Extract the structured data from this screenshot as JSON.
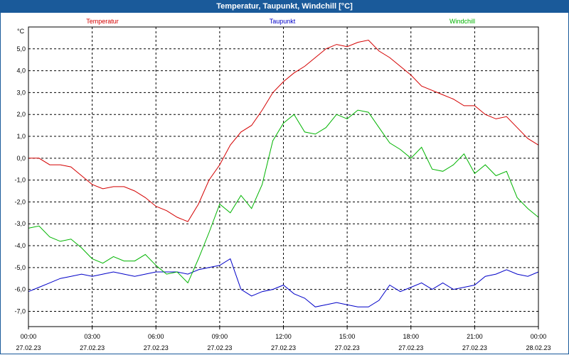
{
  "window": {
    "title": "Temperatur, Taupunkt, Windchill [°C]"
  },
  "chart_data": {
    "type": "line",
    "title": "Temperatur, Taupunkt, Windchill [°C]",
    "ylabel": "°C",
    "xlabel": "",
    "ylim": [
      -7.5,
      6.0
    ],
    "grid": true,
    "legend_placement": "top",
    "x_ticks": [
      {
        "time": "00:00",
        "date": "27.02.23"
      },
      {
        "time": "03:00",
        "date": "27.02.23"
      },
      {
        "time": "06:00",
        "date": "27.02.23"
      },
      {
        "time": "09:00",
        "date": "27.02.23"
      },
      {
        "time": "12:00",
        "date": "27.02.23"
      },
      {
        "time": "15:00",
        "date": "27.02.23"
      },
      {
        "time": "18:00",
        "date": "27.02.23"
      },
      {
        "time": "21:00",
        "date": "27.02.23"
      },
      {
        "time": "00:00",
        "date": "28.02.23"
      }
    ],
    "y_ticks": [
      "5,0",
      "4,0",
      "3,0",
      "2,0",
      "1,0",
      "0,0",
      "-1,0",
      "-2,0",
      "-3,0",
      "-4,0",
      "-5,0",
      "-6,0",
      "-7,0"
    ],
    "x_hours": [
      0,
      0.5,
      1,
      1.5,
      2,
      2.5,
      3,
      3.5,
      4,
      4.5,
      5,
      5.5,
      6,
      6.5,
      7,
      7.5,
      8,
      8.5,
      9,
      9.5,
      10,
      10.5,
      11,
      11.5,
      12,
      12.5,
      13,
      13.5,
      14,
      14.5,
      15,
      15.5,
      16,
      16.5,
      17,
      17.5,
      18,
      18.5,
      19,
      19.5,
      20,
      20.5,
      21,
      21.5,
      22,
      22.5,
      23,
      23.5,
      24
    ],
    "series": [
      {
        "name": "Temperatur",
        "color": "#d40000",
        "values": [
          0.0,
          0.0,
          -0.3,
          -0.3,
          -0.4,
          -0.8,
          -1.2,
          -1.4,
          -1.3,
          -1.3,
          -1.5,
          -1.8,
          -2.2,
          -2.4,
          -2.7,
          -2.9,
          -2.1,
          -1.0,
          -0.3,
          0.6,
          1.2,
          1.5,
          2.2,
          3.0,
          3.5,
          3.9,
          4.2,
          4.6,
          5.0,
          5.2,
          5.1,
          5.3,
          5.4,
          4.9,
          4.6,
          4.2,
          3.8,
          3.3,
          3.1,
          2.9,
          2.7,
          2.4,
          2.4,
          2.0,
          1.8,
          1.9,
          1.4,
          0.9,
          0.6
        ]
      },
      {
        "name": "Taupunkt",
        "color": "#0000c8",
        "values": [
          -6.1,
          -5.9,
          -5.7,
          -5.5,
          -5.4,
          -5.3,
          -5.4,
          -5.3,
          -5.2,
          -5.3,
          -5.4,
          -5.3,
          -5.2,
          -5.2,
          -5.2,
          -5.3,
          -5.1,
          -5.0,
          -4.9,
          -4.6,
          -6.0,
          -6.3,
          -6.1,
          -6.0,
          -5.8,
          -6.2,
          -6.4,
          -6.8,
          -6.7,
          -6.6,
          -6.7,
          -6.8,
          -6.8,
          -6.5,
          -5.8,
          -6.1,
          -5.9,
          -5.7,
          -6.0,
          -5.7,
          -6.0,
          -5.9,
          -5.8,
          -5.4,
          -5.3,
          -5.1,
          -5.3,
          -5.4,
          -5.2
        ]
      },
      {
        "name": "Windchill",
        "color": "#00b400",
        "values": [
          -3.2,
          -3.1,
          -3.6,
          -3.8,
          -3.7,
          -4.1,
          -4.6,
          -4.8,
          -4.5,
          -4.7,
          -4.7,
          -4.4,
          -4.9,
          -5.3,
          -5.2,
          -5.7,
          -4.6,
          -3.4,
          -2.1,
          -2.5,
          -1.7,
          -2.3,
          -1.2,
          0.8,
          1.6,
          2.0,
          1.2,
          1.1,
          1.4,
          2.0,
          1.8,
          2.2,
          2.1,
          1.4,
          0.7,
          0.4,
          0.0,
          0.5,
          -0.5,
          -0.6,
          -0.3,
          0.2,
          -0.7,
          -0.3,
          -0.8,
          -0.6,
          -1.8,
          -2.3,
          -2.7
        ]
      }
    ]
  }
}
